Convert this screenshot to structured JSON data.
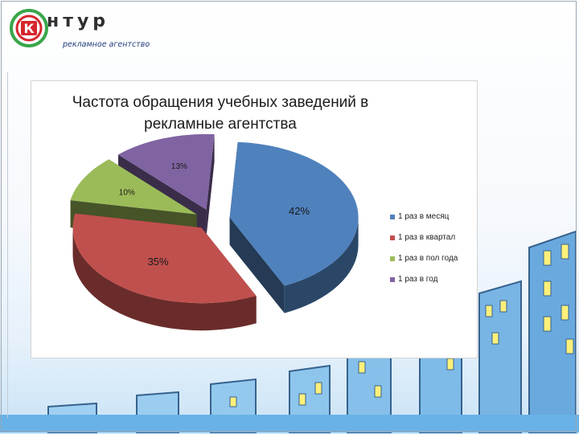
{
  "logo": {
    "mark_letter": "К",
    "brand": "нтур",
    "tagline": "рекламное агентство"
  },
  "colors": {
    "logo_red": "#d6272e",
    "logo_green": "#3aa64a",
    "window_yellow": "#ffee6a",
    "building_blue": "#5d9fd8"
  },
  "chart_data": {
    "type": "pie",
    "title": "Частота обращения учебных заведений в рекламные агентства",
    "title_lines": [
      "Частота обращения учебных заведений в",
      "рекламные агентства"
    ],
    "three_d": true,
    "exploded": true,
    "legend_position": "right",
    "slices": [
      {
        "label": "1 раз в месяц",
        "value": 42,
        "value_label": "42%",
        "color": "#4f81bd"
      },
      {
        "label": "1 раз в квартал",
        "value": 35,
        "value_label": "35%",
        "color": "#c0504d"
      },
      {
        "label": "1 раз в пол года",
        "value": 10,
        "value_label": "10%",
        "color": "#9bbb59"
      },
      {
        "label": "1 раз в год",
        "value": 13,
        "value_label": "13%",
        "color": "#8064a2"
      }
    ]
  }
}
